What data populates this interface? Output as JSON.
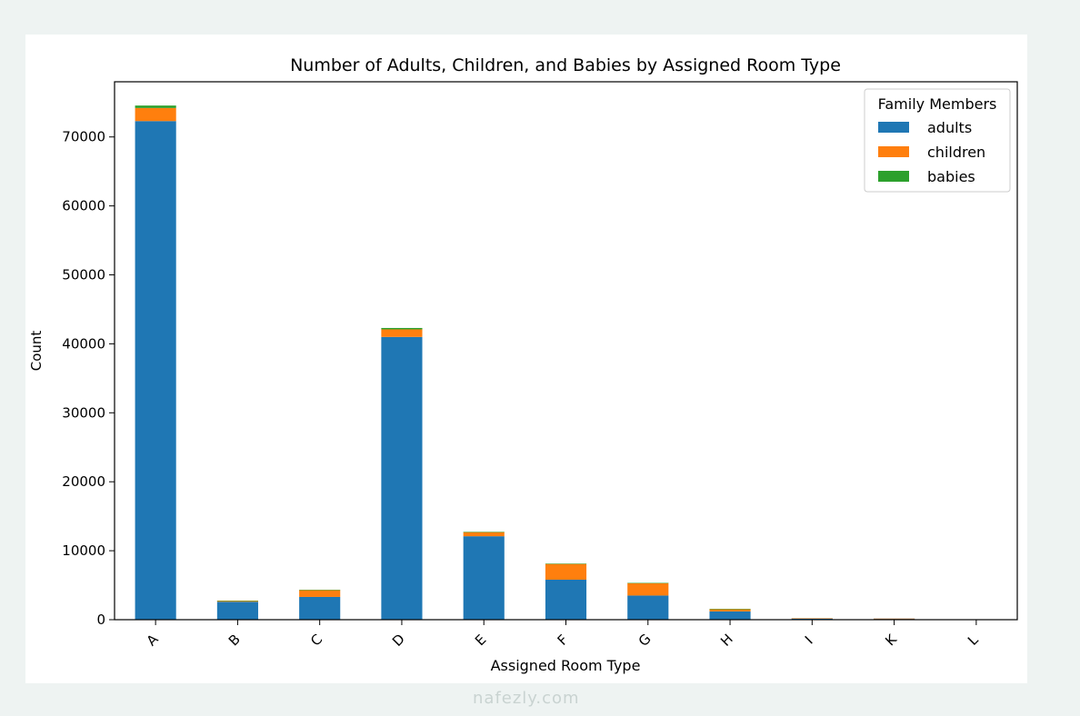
{
  "chart_data": {
    "type": "bar",
    "stacked": true,
    "title": "Number of Adults, Children, and Babies by Assigned Room Type",
    "xlabel": "Assigned Room Type",
    "ylabel": "Count",
    "ylim": [
      0,
      78000
    ],
    "yticks": [
      0,
      10000,
      20000,
      30000,
      40000,
      50000,
      60000,
      70000
    ],
    "categories": [
      "A",
      "B",
      "C",
      "D",
      "E",
      "F",
      "G",
      "H",
      "I",
      "K",
      "L"
    ],
    "series": [
      {
        "name": "adults",
        "color": "#1f77b4",
        "values": [
          72300,
          2600,
          3300,
          41000,
          12100,
          5800,
          3500,
          1200,
          200,
          150,
          10
        ]
      },
      {
        "name": "children",
        "color": "#ff7f0e",
        "values": [
          1900,
          150,
          1000,
          1100,
          600,
          2300,
          1800,
          350,
          10,
          10,
          0
        ]
      },
      {
        "name": "babies",
        "color": "#2ca02c",
        "values": [
          350,
          20,
          30,
          200,
          40,
          30,
          30,
          5,
          0,
          0,
          0
        ]
      }
    ],
    "legend": {
      "title": "Family Members",
      "position": "top-right"
    },
    "grid": false
  },
  "watermark": "nafezly.com"
}
